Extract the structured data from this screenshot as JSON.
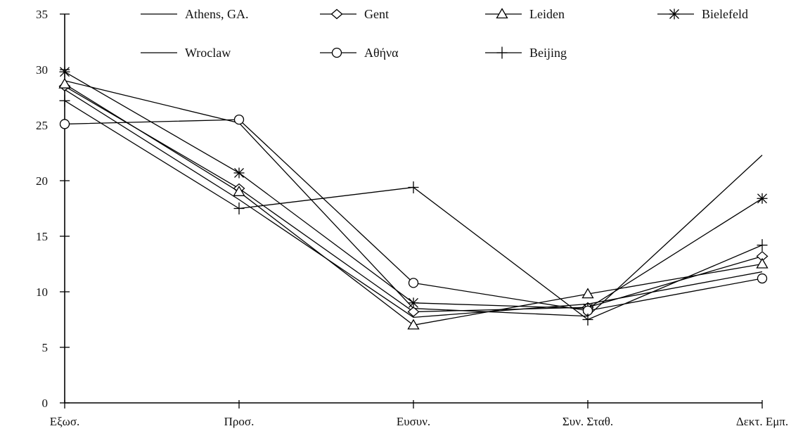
{
  "chart_data": {
    "type": "line",
    "title": "",
    "xlabel": "",
    "ylabel": "",
    "categories": [
      "Εξωσ.",
      "Προσ.",
      "Ευσυν.",
      "Συν. Σταθ.",
      "Δεκτ. Εμπ."
    ],
    "ylim": [
      0,
      35
    ],
    "yticks": [
      0,
      5,
      10,
      15,
      20,
      25,
      30,
      35
    ],
    "grid": false,
    "legend": "top",
    "line_color": "#000000",
    "series": [
      {
        "name": "Athens, GA.",
        "marker": "none",
        "values": [
          29.0,
          25.2,
          8.5,
          7.8,
          22.3
        ]
      },
      {
        "name": "Gent",
        "marker": "diamond",
        "values": [
          28.5,
          19.3,
          8.2,
          8.6,
          13.2
        ]
      },
      {
        "name": "Leiden",
        "marker": "triangle",
        "values": [
          28.7,
          19.0,
          7.0,
          9.8,
          12.5
        ]
      },
      {
        "name": "Bielefeld",
        "marker": "asterisk",
        "values": [
          29.8,
          20.7,
          9.0,
          8.5,
          18.4
        ]
      },
      {
        "name": "Wroclaw",
        "marker": "none",
        "values": [
          28.2,
          18.3,
          7.7,
          8.9,
          11.8
        ]
      },
      {
        "name": "Αθήνα",
        "marker": "circle",
        "values": [
          25.1,
          25.5,
          10.8,
          8.3,
          11.2
        ]
      },
      {
        "name": "Beijing",
        "marker": "plus",
        "values": [
          27.2,
          17.5,
          19.4,
          7.5,
          14.2
        ]
      }
    ]
  }
}
